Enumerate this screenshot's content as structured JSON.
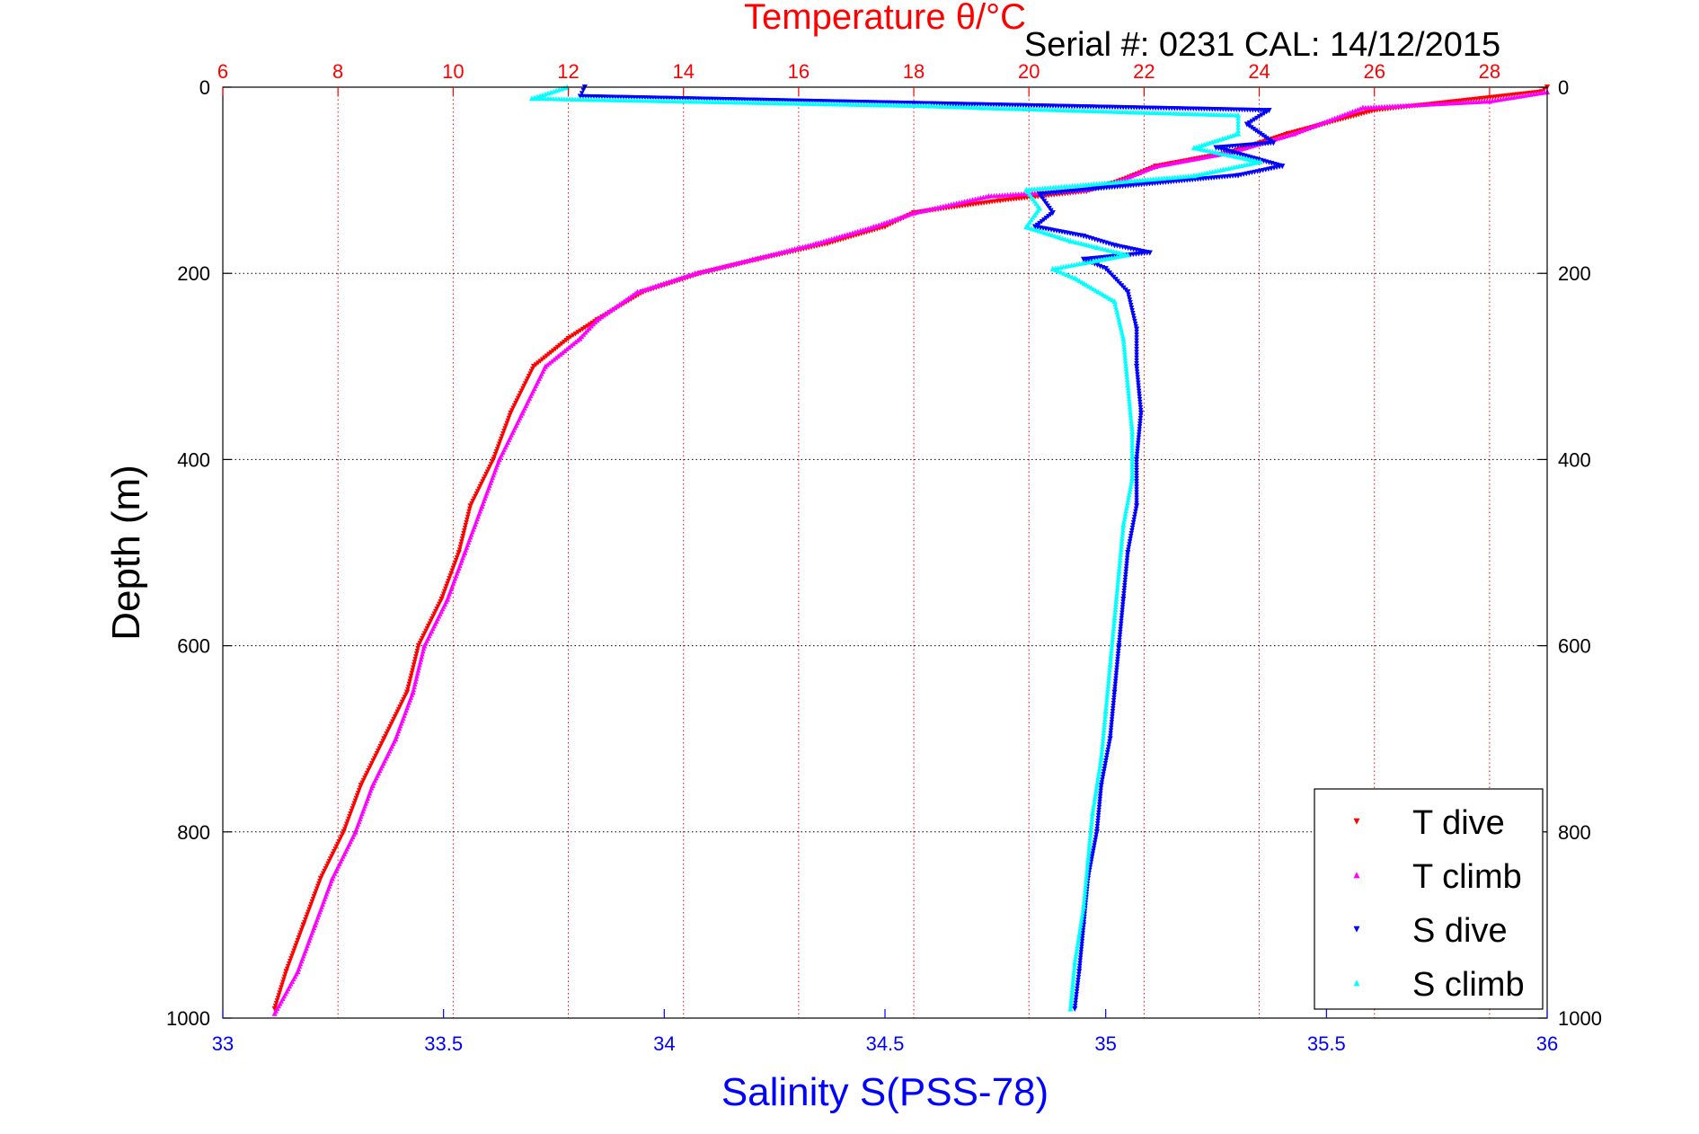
{
  "serial_label": "Serial #: 0231  CAL: 14/12/2015",
  "chart_data": {
    "type": "scatter",
    "top_axis": {
      "label": "Temperature θ/°C",
      "range": [
        6,
        29
      ],
      "ticks": [
        6,
        8,
        10,
        12,
        14,
        16,
        18,
        20,
        22,
        24,
        26,
        28
      ],
      "color": "#ff0000"
    },
    "bottom_axis": {
      "label": "Salinity S(PSS-78)",
      "range": [
        33,
        36
      ],
      "ticks": [
        33,
        33.5,
        34,
        34.5,
        35,
        35.5,
        36
      ],
      "color": "#0000ff"
    },
    "y_axis": {
      "label": "Depth (m)",
      "range": [
        0,
        1000
      ],
      "reversed": true,
      "ticks": [
        0,
        200,
        400,
        600,
        800,
        1000
      ]
    },
    "grid": true,
    "legend_position": "bottom-right",
    "series": [
      {
        "name": "T dive",
        "axis": "temperature",
        "color": "#ff0000",
        "marker": "triangle-down",
        "points": [
          [
            29,
            0
          ],
          [
            28.9,
            5
          ],
          [
            26,
            25
          ],
          [
            24.5,
            50
          ],
          [
            23.5,
            70
          ],
          [
            22.2,
            85
          ],
          [
            21.6,
            100
          ],
          [
            21,
            112
          ],
          [
            19.5,
            122
          ],
          [
            18,
            135
          ],
          [
            17.5,
            150
          ],
          [
            16.5,
            168
          ],
          [
            15.3,
            185
          ],
          [
            14.3,
            200
          ],
          [
            13.3,
            220
          ],
          [
            12.5,
            250
          ],
          [
            12.0,
            270
          ],
          [
            11.4,
            300
          ],
          [
            11.0,
            350
          ],
          [
            10.7,
            400
          ],
          [
            10.3,
            450
          ],
          [
            10.1,
            500
          ],
          [
            9.8,
            550
          ],
          [
            9.4,
            600
          ],
          [
            9.2,
            650
          ],
          [
            8.8,
            700
          ],
          [
            8.4,
            750
          ],
          [
            8.1,
            800
          ],
          [
            7.7,
            850
          ],
          [
            7.4,
            900
          ],
          [
            7.1,
            950
          ],
          [
            6.9,
            990
          ]
        ]
      },
      {
        "name": "T climb",
        "axis": "temperature",
        "color": "#ff00ff",
        "marker": "triangle-up",
        "points": [
          [
            29,
            5
          ],
          [
            28,
            15
          ],
          [
            25.8,
            22
          ],
          [
            24.6,
            50
          ],
          [
            23.5,
            70
          ],
          [
            22.2,
            85
          ],
          [
            21.6,
            100
          ],
          [
            21,
            110
          ],
          [
            19.3,
            117
          ],
          [
            18,
            135
          ],
          [
            17.3,
            150
          ],
          [
            16.3,
            168
          ],
          [
            15.2,
            185
          ],
          [
            14.2,
            200
          ],
          [
            13.2,
            220
          ],
          [
            12.5,
            250
          ],
          [
            12.2,
            270
          ],
          [
            11.6,
            300
          ],
          [
            11.2,
            350
          ],
          [
            10.8,
            400
          ],
          [
            10.5,
            450
          ],
          [
            10.2,
            500
          ],
          [
            9.9,
            550
          ],
          [
            9.5,
            600
          ],
          [
            9.3,
            650
          ],
          [
            9.0,
            700
          ],
          [
            8.6,
            750
          ],
          [
            8.3,
            800
          ],
          [
            7.9,
            850
          ],
          [
            7.6,
            900
          ],
          [
            7.3,
            950
          ],
          [
            6.9,
            995
          ]
        ]
      },
      {
        "name": "S dive",
        "axis": "salinity",
        "color": "#0000ff",
        "marker": "triangle-down",
        "points": [
          [
            33.82,
            0
          ],
          [
            33.81,
            10
          ],
          [
            35.37,
            25
          ],
          [
            35.32,
            40
          ],
          [
            35.38,
            60
          ],
          [
            35.25,
            65
          ],
          [
            35.4,
            85
          ],
          [
            35.3,
            95
          ],
          [
            34.85,
            115
          ],
          [
            34.88,
            135
          ],
          [
            34.84,
            150
          ],
          [
            34.95,
            160
          ],
          [
            35.02,
            170
          ],
          [
            35.1,
            178
          ],
          [
            34.95,
            185
          ],
          [
            35.0,
            195
          ],
          [
            35.05,
            220
          ],
          [
            35.07,
            260
          ],
          [
            35.07,
            300
          ],
          [
            35.08,
            350
          ],
          [
            35.07,
            400
          ],
          [
            35.07,
            450
          ],
          [
            35.05,
            500
          ],
          [
            35.04,
            550
          ],
          [
            35.03,
            600
          ],
          [
            35.02,
            650
          ],
          [
            35.01,
            700
          ],
          [
            34.99,
            750
          ],
          [
            34.98,
            800
          ],
          [
            34.96,
            850
          ],
          [
            34.95,
            900
          ],
          [
            34.94,
            950
          ],
          [
            34.93,
            990
          ]
        ]
      },
      {
        "name": "S climb",
        "axis": "salinity",
        "color": "#00ffff",
        "marker": "triangle-up",
        "points": [
          [
            33.78,
            0
          ],
          [
            33.7,
            12
          ],
          [
            34.6,
            20
          ],
          [
            34.72,
            22
          ],
          [
            35.3,
            30
          ],
          [
            35.3,
            50
          ],
          [
            35.2,
            65
          ],
          [
            35.35,
            80
          ],
          [
            35.2,
            95
          ],
          [
            34.82,
            110
          ],
          [
            34.85,
            130
          ],
          [
            34.82,
            150
          ],
          [
            34.92,
            165
          ],
          [
            34.98,
            172
          ],
          [
            35.05,
            180
          ],
          [
            34.88,
            195
          ],
          [
            34.93,
            205
          ],
          [
            35.02,
            230
          ],
          [
            35.04,
            270
          ],
          [
            35.05,
            320
          ],
          [
            35.06,
            370
          ],
          [
            35.06,
            420
          ],
          [
            35.04,
            470
          ],
          [
            35.03,
            520
          ],
          [
            35.02,
            570
          ],
          [
            35.01,
            620
          ],
          [
            35.0,
            670
          ],
          [
            34.99,
            720
          ],
          [
            34.97,
            780
          ],
          [
            34.96,
            830
          ],
          [
            34.95,
            880
          ],
          [
            34.93,
            940
          ],
          [
            34.92,
            990
          ]
        ]
      }
    ]
  }
}
